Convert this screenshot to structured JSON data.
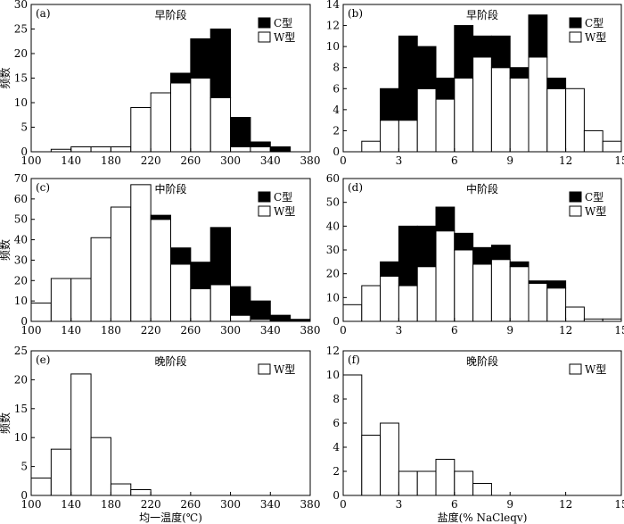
{
  "chart_data": [
    {
      "type": "bar",
      "panel_label": "(a)",
      "title": "早阶段",
      "xlim": [
        100,
        380
      ],
      "ylim": [
        0,
        30
      ],
      "xticks": [
        100,
        140,
        180,
        220,
        260,
        300,
        340,
        380
      ],
      "yticks": [
        0,
        5,
        10,
        15,
        20,
        25,
        30
      ],
      "bin_width": 20,
      "bins": [
        100,
        120,
        140,
        160,
        180,
        200,
        220,
        240,
        260,
        280,
        300,
        320,
        340
      ],
      "series": [
        {
          "name": "W型",
          "values": [
            0,
            0.5,
            1,
            1,
            1,
            9,
            12,
            14,
            15,
            11,
            1,
            1,
            0
          ]
        },
        {
          "name": "C型",
          "values": [
            0,
            0,
            0,
            0,
            0,
            0,
            0,
            2,
            8,
            14,
            6,
            1,
            1
          ]
        }
      ],
      "ylabel": "频数",
      "xlabel": "",
      "legend": "top-right"
    },
    {
      "type": "bar",
      "panel_label": "(b)",
      "title": "早阶段",
      "xlim": [
        0,
        15
      ],
      "ylim": [
        0,
        14
      ],
      "xticks": [
        0,
        3,
        6,
        9,
        12,
        15
      ],
      "yticks": [
        0,
        2,
        4,
        6,
        8,
        10,
        12,
        14
      ],
      "bin_width": 1,
      "bins": [
        0,
        1,
        2,
        3,
        4,
        5,
        6,
        7,
        8,
        9,
        10,
        11,
        12,
        13,
        14
      ],
      "series": [
        {
          "name": "W型",
          "values": [
            0,
            1,
            3,
            3,
            6,
            5,
            7,
            9,
            8,
            7,
            9,
            6,
            6,
            2,
            1
          ]
        },
        {
          "name": "C型",
          "values": [
            0,
            0,
            3,
            8,
            4,
            2,
            5,
            2,
            3,
            1,
            4,
            1,
            0,
            0,
            0
          ]
        }
      ],
      "ylabel": "",
      "xlabel": "",
      "legend": "top-right"
    },
    {
      "type": "bar",
      "panel_label": "(c)",
      "title": "中阶段",
      "xlim": [
        100,
        380
      ],
      "ylim": [
        0,
        70
      ],
      "xticks": [
        100,
        140,
        180,
        220,
        260,
        300,
        340,
        380
      ],
      "yticks": [
        0,
        10,
        20,
        30,
        40,
        50,
        60,
        70
      ],
      "bin_width": 20,
      "bins": [
        100,
        120,
        140,
        160,
        180,
        200,
        220,
        240,
        260,
        280,
        300,
        320,
        340,
        360
      ],
      "series": [
        {
          "name": "W型",
          "values": [
            9,
            21,
            21,
            41,
            56,
            67,
            50,
            28,
            16,
            18,
            3,
            1,
            0,
            0
          ]
        },
        {
          "name": "C型",
          "values": [
            0,
            0,
            0,
            0,
            0,
            0,
            2,
            8,
            13,
            28,
            14,
            9,
            3,
            1
          ]
        }
      ],
      "ylabel": "频数",
      "xlabel": "",
      "legend": "top-right"
    },
    {
      "type": "bar",
      "panel_label": "(d)",
      "title": "中阶段",
      "xlim": [
        0,
        15
      ],
      "ylim": [
        0,
        60
      ],
      "xticks": [
        0,
        3,
        6,
        9,
        12,
        15
      ],
      "yticks": [
        0,
        10,
        20,
        30,
        40,
        50,
        60
      ],
      "bin_width": 1,
      "bins": [
        0,
        1,
        2,
        3,
        4,
        5,
        6,
        7,
        8,
        9,
        10,
        11,
        12,
        13,
        14
      ],
      "series": [
        {
          "name": "W型",
          "values": [
            7,
            15,
            19,
            15,
            23,
            38,
            30,
            24,
            26,
            23,
            16,
            14,
            6,
            1,
            1
          ]
        },
        {
          "name": "C型",
          "values": [
            0,
            0,
            6,
            25,
            17,
            10,
            7,
            7,
            6,
            2,
            1,
            3,
            0,
            0,
            0
          ]
        }
      ],
      "ylabel": "",
      "xlabel": "",
      "legend": "top-right"
    },
    {
      "type": "bar",
      "panel_label": "(e)",
      "title": "晚阶段",
      "xlim": [
        100,
        380
      ],
      "ylim": [
        0,
        25
      ],
      "xticks": [
        100,
        140,
        180,
        220,
        260,
        300,
        340,
        380
      ],
      "yticks": [
        0,
        5,
        10,
        15,
        20,
        25
      ],
      "bin_width": 20,
      "bins": [
        100,
        120,
        140,
        160,
        180,
        200
      ],
      "series": [
        {
          "name": "W型",
          "values": [
            3,
            8,
            21,
            10,
            2,
            1
          ]
        }
      ],
      "ylabel": "频数",
      "xlabel": "均一温度(℃)",
      "legend": "top-right"
    },
    {
      "type": "bar",
      "panel_label": "(f)",
      "title": "晚阶段",
      "xlim": [
        0,
        15
      ],
      "ylim": [
        0,
        12
      ],
      "xticks": [
        0,
        3,
        6,
        9,
        12,
        15
      ],
      "yticks": [
        0,
        2,
        4,
        6,
        8,
        10,
        12
      ],
      "bin_width": 1,
      "bins": [
        0,
        1,
        2,
        3,
        4,
        5,
        6,
        7
      ],
      "series": [
        {
          "name": "W型",
          "values": [
            10,
            5,
            6,
            2,
            2,
            3,
            2,
            1
          ]
        }
      ],
      "ylabel": "",
      "xlabel": "盐度(% NaCleqv)",
      "legend": "top-right"
    }
  ],
  "colors": {
    "W型": "#ffffff",
    "C型": "#000000",
    "axis": "#000000"
  }
}
